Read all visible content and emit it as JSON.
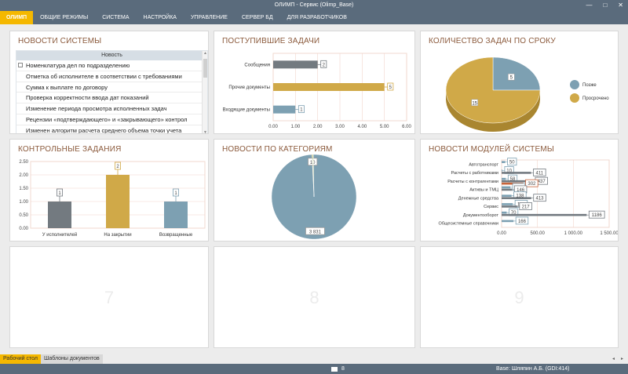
{
  "window": {
    "title": "ОЛИМП - Сервис (Olimp_Base)",
    "controls": [
      "—",
      "□",
      "✕"
    ]
  },
  "menu": {
    "items": [
      "ОЛИМП",
      "ОБЩИЕ РЕЖИМЫ",
      "СИСТЕМА",
      "НАСТРОЙКА",
      "УПРАВЛЕНИЕ",
      "СЕРВЕР БД",
      "ДЛЯ РАЗРАБОТЧИКОВ"
    ],
    "active_index": 0
  },
  "panels": {
    "news": {
      "title": "НОВОСТИ СИСТЕМЫ",
      "column_header": "Новость",
      "rows": [
        "Номенклатура дел по подразделению",
        "Отметка об исполнителе в соответствии с требованиями",
        "Сумма к выплате по договору",
        "Проверка корректности ввода дат показаний",
        "Изменение периода просмотра исполненных задач",
        "Рецензии «подтверждающего» и «закрывающего» контрол",
        "Изменен алгоритм расчета среднего объема точки учета"
      ]
    },
    "incoming_tasks": {
      "title": "ПОСТУПИВШИЕ ЗАДАЧИ"
    },
    "tasks_by_deadline": {
      "title": "КОЛИЧЕСТВО ЗАДАЧ ПО СРОКУ"
    },
    "control_tasks": {
      "title": "КОНТРОЛЬНЫЕ ЗАДАНИЯ"
    },
    "news_by_category": {
      "title": "НОВОСТИ ПО КАТЕГОРИЯМ"
    },
    "module_news": {
      "title": "НОВОСТИ МОДУЛЕЙ СИСТЕМЫ"
    },
    "empty": [
      "7",
      "8",
      "9"
    ]
  },
  "chart_data": [
    {
      "id": "incoming_tasks",
      "type": "bar",
      "orientation": "horizontal",
      "categories": [
        "Сообщения",
        "Прочие документы",
        "Входящие документы"
      ],
      "values": [
        2,
        5,
        1
      ],
      "bar_colors": [
        "#737a80",
        "#d0a948",
        "#7da0b2"
      ],
      "x_ticks": [
        "0.00",
        "1.00",
        "2.00",
        "3.00",
        "4.00",
        "5.00",
        "6.00"
      ],
      "xlim": [
        0,
        6
      ],
      "grid": true
    },
    {
      "id": "tasks_by_deadline",
      "type": "pie",
      "style": "3d",
      "slices": [
        {
          "label": "Позже",
          "value": 5,
          "color": "#7da0b2"
        },
        {
          "label": "Просрочено",
          "value": 15,
          "color": "#d0a948"
        }
      ],
      "legend": "right"
    },
    {
      "id": "control_tasks",
      "type": "bar",
      "categories": [
        "У исполнителей",
        "На закрытии",
        "Возвращенные"
      ],
      "values": [
        1,
        2,
        1
      ],
      "bar_colors": [
        "#737a80",
        "#d0a948",
        "#7da0b2"
      ],
      "y_ticks": [
        "0.00",
        "0.50",
        "1.00",
        "1.50",
        "2.00",
        "2.50"
      ],
      "ylim": [
        0,
        2.5
      ],
      "grid": true
    },
    {
      "id": "news_by_category",
      "type": "pie",
      "slices": [
        {
          "label": "3 831",
          "value": 3831,
          "color": "#7da0b2"
        },
        {
          "label": "10",
          "value": 10,
          "color": "#d0a948"
        },
        {
          "label": "",
          "value": 10,
          "color": "#9ab556"
        }
      ]
    },
    {
      "id": "module_news",
      "type": "bar",
      "orientation": "horizontal",
      "categories": [
        "Автотранспорт",
        "Расчеты с работниками",
        "Расчеты с контрагентами",
        "Активы и ТМЦ",
        "Денежные средства",
        "Сервис",
        "Документооборот",
        "Общесистемные справочники"
      ],
      "series": [
        {
          "values": [
            50,
            10,
            58,
            122,
            138,
            155,
            70,
            166
          ],
          "color": "#7da0b2"
        },
        {
          "values": [
            0,
            411,
            437,
            146,
            413,
            217,
            1186,
            0
          ],
          "color": "#737a80"
        },
        {
          "values": [
            0,
            0,
            302,
            0,
            0,
            0,
            0,
            0
          ],
          "color": "#c8643a"
        }
      ],
      "x_ticks": [
        "0.00",
        "500.00",
        "1 000.00",
        "1 500.00"
      ],
      "xlim": [
        0,
        1500
      ],
      "grid": true
    }
  ],
  "tabs": {
    "items": [
      "Рабочий стол",
      "Шаблоны документов"
    ],
    "active_index": 0,
    "nav": [
      "◂",
      "▸"
    ]
  },
  "status": {
    "mail_count": "8",
    "user": "Base: Шляпин А.Б. (GDI:414)"
  }
}
